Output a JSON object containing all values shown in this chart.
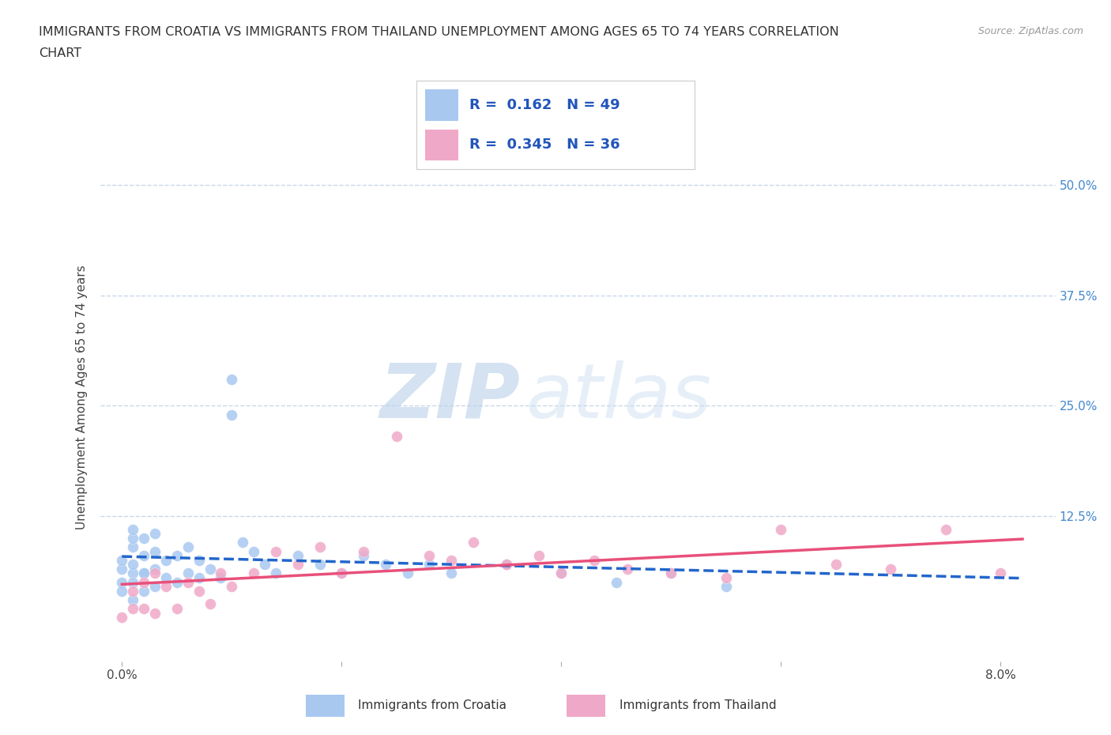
{
  "title_line1": "IMMIGRANTS FROM CROATIA VS IMMIGRANTS FROM THAILAND UNEMPLOYMENT AMONG AGES 65 TO 74 YEARS CORRELATION",
  "title_line2": "CHART",
  "source": "Source: ZipAtlas.com",
  "ylabel": "Unemployment Among Ages 65 to 74 years",
  "croatia_color": "#a8c8f0",
  "thailand_color": "#f0a8c8",
  "croatia_line_color": "#2266cc",
  "thailand_line_color": "#e8507a",
  "grid_color": "#c8d8e8",
  "background": "#ffffff",
  "legend_croatia_R": "0.162",
  "legend_croatia_N": "49",
  "legend_thailand_R": "0.345",
  "legend_thailand_N": "36",
  "xlim": [
    -0.002,
    0.085
  ],
  "ylim": [
    -0.04,
    0.56
  ],
  "croatia_x": [
    0.0,
    0.0,
    0.0,
    0.0,
    0.001,
    0.001,
    0.001,
    0.001,
    0.001,
    0.001,
    0.001,
    0.002,
    0.002,
    0.002,
    0.002,
    0.002,
    0.003,
    0.003,
    0.003,
    0.003,
    0.004,
    0.004,
    0.005,
    0.005,
    0.006,
    0.006,
    0.007,
    0.007,
    0.008,
    0.009,
    0.01,
    0.01,
    0.011,
    0.012,
    0.013,
    0.014,
    0.016,
    0.018,
    0.02,
    0.022,
    0.024,
    0.026,
    0.028,
    0.03,
    0.035,
    0.04,
    0.045,
    0.05,
    0.055
  ],
  "croatia_y": [
    0.05,
    0.065,
    0.075,
    0.04,
    0.03,
    0.06,
    0.07,
    0.09,
    0.1,
    0.11,
    0.05,
    0.04,
    0.06,
    0.08,
    0.1,
    0.06,
    0.045,
    0.065,
    0.085,
    0.105,
    0.055,
    0.075,
    0.05,
    0.08,
    0.06,
    0.09,
    0.055,
    0.075,
    0.065,
    0.055,
    0.28,
    0.24,
    0.095,
    0.085,
    0.07,
    0.06,
    0.08,
    0.07,
    0.06,
    0.08,
    0.07,
    0.06,
    0.07,
    0.06,
    0.07,
    0.06,
    0.05,
    0.06,
    0.045
  ],
  "thailand_x": [
    0.0,
    0.001,
    0.001,
    0.002,
    0.002,
    0.003,
    0.003,
    0.004,
    0.005,
    0.006,
    0.007,
    0.008,
    0.009,
    0.01,
    0.012,
    0.014,
    0.016,
    0.018,
    0.02,
    0.022,
    0.025,
    0.028,
    0.03,
    0.032,
    0.035,
    0.038,
    0.04,
    0.043,
    0.046,
    0.05,
    0.055,
    0.06,
    0.065,
    0.07,
    0.075,
    0.08
  ],
  "thailand_y": [
    0.01,
    0.02,
    0.04,
    0.02,
    0.05,
    0.015,
    0.06,
    0.045,
    0.02,
    0.05,
    0.04,
    0.025,
    0.06,
    0.045,
    0.06,
    0.085,
    0.07,
    0.09,
    0.06,
    0.085,
    0.215,
    0.08,
    0.075,
    0.095,
    0.07,
    0.08,
    0.06,
    0.075,
    0.065,
    0.06,
    0.055,
    0.11,
    0.07,
    0.065,
    0.11,
    0.06
  ],
  "watermark_zip": "ZIP",
  "watermark_atlas": "atlas",
  "title_fontsize": 11.5,
  "tick_fontsize": 11,
  "label_fontsize": 11
}
